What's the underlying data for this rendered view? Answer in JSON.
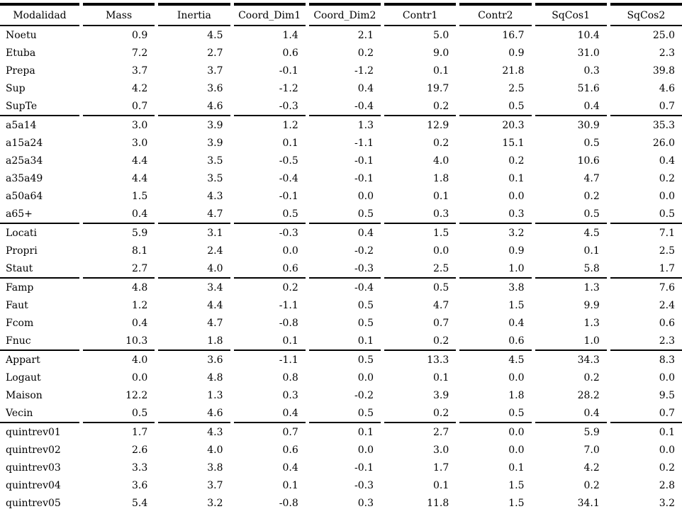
{
  "chart_data": {
    "type": "table",
    "title": "",
    "decimals": 1,
    "legend_position": "none",
    "columns": [
      "Modalidad",
      "Mass",
      "Inertia",
      "Coord_Dim1",
      "Coord_Dim2",
      "Contr1",
      "Contr2",
      "SqCos1",
      "SqCos2"
    ],
    "row_groups": [
      [
        {
          "label": "Noetu",
          "values": [
            0.9,
            4.5,
            1.4,
            2.1,
            5.0,
            16.7,
            10.4,
            25.0
          ]
        },
        {
          "label": "Etuba",
          "values": [
            7.2,
            2.7,
            0.6,
            0.2,
            9.0,
            0.9,
            31.0,
            2.3
          ]
        },
        {
          "label": "Prepa",
          "values": [
            3.7,
            3.7,
            -0.1,
            -1.2,
            0.1,
            21.8,
            0.3,
            39.8
          ]
        },
        {
          "label": "Sup",
          "values": [
            4.2,
            3.6,
            -1.2,
            0.4,
            19.7,
            2.5,
            51.6,
            4.6
          ]
        },
        {
          "label": "SupTe",
          "values": [
            0.7,
            4.6,
            -0.3,
            -0.4,
            0.2,
            0.5,
            0.4,
            0.7
          ]
        }
      ],
      [
        {
          "label": "a5a14",
          "values": [
            3.0,
            3.9,
            1.2,
            1.3,
            12.9,
            20.3,
            30.9,
            35.3
          ]
        },
        {
          "label": "a15a24",
          "values": [
            3.0,
            3.9,
            0.1,
            -1.1,
            0.2,
            15.1,
            0.5,
            26.0
          ]
        },
        {
          "label": "a25a34",
          "values": [
            4.4,
            3.5,
            -0.5,
            -0.1,
            4.0,
            0.2,
            10.6,
            0.4
          ]
        },
        {
          "label": "a35a49",
          "values": [
            4.4,
            3.5,
            -0.4,
            -0.1,
            1.8,
            0.1,
            4.7,
            0.2
          ]
        },
        {
          "label": "a50a64",
          "values": [
            1.5,
            4.3,
            -0.1,
            0.0,
            0.1,
            0.0,
            0.2,
            0.0
          ]
        },
        {
          "label": "a65+",
          "values": [
            0.4,
            4.7,
            0.5,
            0.5,
            0.3,
            0.3,
            0.5,
            0.5
          ]
        }
      ],
      [
        {
          "label": "Locati",
          "values": [
            5.9,
            3.1,
            -0.3,
            0.4,
            1.5,
            3.2,
            4.5,
            7.1
          ]
        },
        {
          "label": "Propri",
          "values": [
            8.1,
            2.4,
            0.0,
            -0.2,
            0.0,
            0.9,
            0.1,
            2.5
          ]
        },
        {
          "label": "Staut",
          "values": [
            2.7,
            4.0,
            0.6,
            -0.3,
            2.5,
            1.0,
            5.8,
            1.7
          ]
        }
      ],
      [
        {
          "label": "Famp",
          "values": [
            4.8,
            3.4,
            0.2,
            -0.4,
            0.5,
            3.8,
            1.3,
            7.6
          ]
        },
        {
          "label": "Faut",
          "values": [
            1.2,
            4.4,
            -1.1,
            0.5,
            4.7,
            1.5,
            9.9,
            2.4
          ]
        },
        {
          "label": "Fcom",
          "values": [
            0.4,
            4.7,
            -0.8,
            0.5,
            0.7,
            0.4,
            1.3,
            0.6
          ]
        },
        {
          "label": "Fnuc",
          "values": [
            10.3,
            1.8,
            0.1,
            0.1,
            0.2,
            0.6,
            1.0,
            2.3
          ]
        }
      ],
      [
        {
          "label": "Appart",
          "values": [
            4.0,
            3.6,
            -1.1,
            0.5,
            13.3,
            4.5,
            34.3,
            8.3
          ]
        },
        {
          "label": "Logaut",
          "values": [
            0.0,
            4.8,
            0.8,
            0.0,
            0.1,
            0.0,
            0.2,
            0.0
          ]
        },
        {
          "label": "Maison",
          "values": [
            12.2,
            1.3,
            0.3,
            -0.2,
            3.9,
            1.8,
            28.2,
            9.5
          ]
        },
        {
          "label": "Vecin",
          "values": [
            0.5,
            4.6,
            0.4,
            0.5,
            0.2,
            0.5,
            0.4,
            0.7
          ]
        }
      ],
      [
        {
          "label": "quintrev01",
          "values": [
            1.7,
            4.3,
            0.7,
            0.1,
            2.7,
            0.0,
            5.9,
            0.1
          ]
        },
        {
          "label": "quintrev02",
          "values": [
            2.6,
            4.0,
            0.6,
            0.0,
            3.0,
            0.0,
            7.0,
            0.0
          ]
        },
        {
          "label": "quintrev03",
          "values": [
            3.3,
            3.8,
            0.4,
            -0.1,
            1.7,
            0.1,
            4.2,
            0.2
          ]
        },
        {
          "label": "quintrev04",
          "values": [
            3.6,
            3.7,
            0.1,
            -0.3,
            0.1,
            1.5,
            0.2,
            2.8
          ]
        },
        {
          "label": "quintrev05",
          "values": [
            5.4,
            3.2,
            -0.8,
            0.3,
            11.8,
            1.5,
            34.1,
            3.2
          ]
        }
      ]
    ],
    "colors": {
      "text": "#000000",
      "rule": "#000000",
      "background": "#ffffff"
    }
  }
}
